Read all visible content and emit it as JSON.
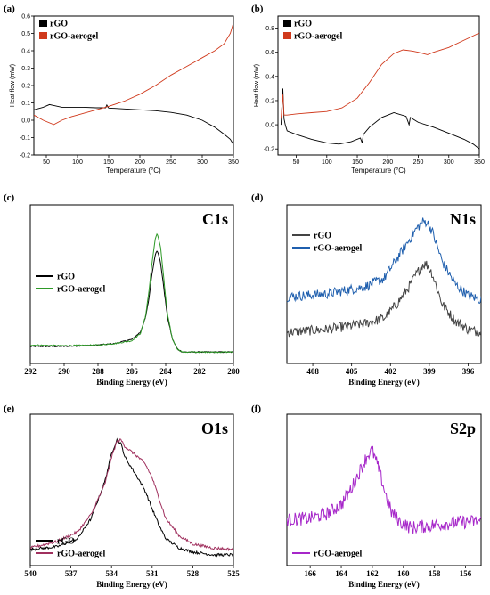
{
  "panels": [
    {
      "id": "a",
      "panel_label": "(a)",
      "style": "dsc",
      "chart_data": {
        "type": "line",
        "title": "",
        "xlabel": "Temperature (°C)",
        "ylabel": "Heat flow (mW)",
        "xlim": [
          30,
          350
        ],
        "ylim": [
          -0.2,
          0.6
        ],
        "xticks": [
          50,
          100,
          150,
          200,
          250,
          300,
          350
        ],
        "yticks": [
          -0.2,
          -0.1,
          0.0,
          0.1,
          0.2,
          0.3,
          0.4,
          0.5,
          0.6
        ],
        "ytick_labels": [
          "-0.2",
          "-0.1",
          "0.0",
          "0.1",
          "0.2",
          "0.3",
          "0.4",
          "0.5",
          "0.6"
        ],
        "legend": {
          "position": "top-left",
          "marker": "box",
          "entries": [
            "rGO",
            "rGO-aerogel"
          ]
        },
        "series": [
          {
            "name": "rGO",
            "color": "#000000",
            "x": [
              30,
              45,
              55,
              62,
              75,
              90,
              110,
              130,
              145,
              147,
              150,
              175,
              200,
              225,
              250,
              275,
              300,
              320,
              335,
              345,
              350
            ],
            "y": [
              0.06,
              0.075,
              0.09,
              0.085,
              0.075,
              0.075,
              0.075,
              0.072,
              0.072,
              0.088,
              0.07,
              0.065,
              0.06,
              0.055,
              0.045,
              0.03,
              0.0,
              -0.04,
              -0.08,
              -0.11,
              -0.14
            ]
          },
          {
            "name": "rGO-aerogel",
            "color": "#d0391c",
            "x": [
              30,
              45,
              62,
              75,
              90,
              110,
              130,
              150,
              175,
              200,
              225,
              250,
              275,
              300,
              320,
              335,
              345,
              350
            ],
            "y": [
              0.03,
              0.0,
              -0.025,
              0.0,
              0.02,
              0.04,
              0.06,
              0.08,
              0.11,
              0.15,
              0.2,
              0.26,
              0.31,
              0.36,
              0.4,
              0.44,
              0.5,
              0.56
            ]
          }
        ]
      }
    },
    {
      "id": "b",
      "panel_label": "(b)",
      "style": "dsc",
      "chart_data": {
        "type": "line",
        "title": "",
        "xlabel": "Temperature (°C)",
        "ylabel": "Heat flow (mW)",
        "xlim": [
          20,
          350
        ],
        "ylim": [
          -0.25,
          0.9
        ],
        "xticks": [
          50,
          100,
          150,
          200,
          250,
          300,
          350
        ],
        "yticks": [
          -0.2,
          0.0,
          0.2,
          0.4,
          0.6,
          0.8
        ],
        "ytick_labels": [
          "-0.2",
          "0.0",
          "0.2",
          "0.4",
          "0.6",
          "0.8"
        ],
        "legend": {
          "position": "top-left",
          "marker": "box",
          "entries": [
            "rGO",
            "rGO-aerogel"
          ]
        },
        "series": [
          {
            "name": "rGO",
            "color": "#000000",
            "x": [
              25,
              28,
              30,
              32,
              35,
              50,
              75,
              100,
              120,
              140,
              155,
              158,
              160,
              170,
              190,
              210,
              230,
              235,
              237,
              250,
              275,
              300,
              325,
              340,
              350
            ],
            "y": [
              0.0,
              0.3,
              0.05,
              0.0,
              -0.05,
              -0.08,
              -0.12,
              -0.15,
              -0.16,
              -0.14,
              -0.11,
              -0.15,
              -0.08,
              -0.02,
              0.06,
              0.1,
              0.07,
              0.0,
              0.06,
              0.02,
              -0.02,
              -0.07,
              -0.12,
              -0.16,
              -0.2
            ]
          },
          {
            "name": "rGO-aerogel",
            "color": "#d0391c",
            "x": [
              25,
              28,
              30,
              35,
              50,
              75,
              100,
              125,
              150,
              170,
              190,
              210,
              225,
              240,
              250,
              265,
              275,
              300,
              325,
              350
            ],
            "y": [
              0.05,
              0.25,
              0.08,
              0.08,
              0.09,
              0.1,
              0.11,
              0.14,
              0.22,
              0.35,
              0.5,
              0.59,
              0.62,
              0.61,
              0.6,
              0.58,
              0.6,
              0.64,
              0.7,
              0.76
            ]
          }
        ]
      }
    },
    {
      "id": "c",
      "panel_label": "(c)",
      "style": "xps",
      "core_label": "C1s",
      "chart_data": {
        "type": "line",
        "title": "",
        "xlabel": "Binding Energy (eV)",
        "ylabel": "",
        "xlim": [
          292,
          280
        ],
        "ylim": [
          0,
          1.12
        ],
        "xticks": [
          292,
          290,
          288,
          286,
          284,
          282,
          280
        ],
        "yticks": [],
        "legend": {
          "position": "center-left",
          "marker": "line",
          "entries": [
            "rGO",
            "rGO-aerogel"
          ]
        },
        "series": [
          {
            "name": "rGO",
            "color": "#000000",
            "x": [
              292,
              290,
              288,
              287,
              286,
              285.5,
              285.2,
              285,
              284.8,
              284.6,
              284.5,
              284.3,
              284.1,
              283.9,
              283.6,
              283.3,
              283,
              282,
              281,
              280
            ],
            "y": [
              0.12,
              0.12,
              0.13,
              0.14,
              0.17,
              0.22,
              0.32,
              0.45,
              0.64,
              0.78,
              0.8,
              0.71,
              0.52,
              0.33,
              0.17,
              0.1,
              0.08,
              0.08,
              0.08,
              0.08
            ]
          },
          {
            "name": "rGO-aerogel",
            "color": "#2e9a28",
            "x": [
              292,
              290,
              288,
              287,
              286,
              285.5,
              285.2,
              285,
              284.8,
              284.6,
              284.5,
              284.3,
              284.1,
              283.9,
              283.6,
              283.3,
              283,
              282,
              281,
              280
            ],
            "y": [
              0.13,
              0.125,
              0.13,
              0.14,
              0.16,
              0.21,
              0.33,
              0.5,
              0.72,
              0.89,
              0.92,
              0.82,
              0.58,
              0.35,
              0.17,
              0.1,
              0.08,
              0.08,
              0.08,
              0.08
            ]
          }
        ]
      }
    },
    {
      "id": "d",
      "panel_label": "(d)",
      "style": "xps",
      "core_label": "N1s",
      "chart_data": {
        "type": "line",
        "title": "",
        "xlabel": "Binding Energy (eV)",
        "ylabel": "",
        "xlim": [
          410,
          395
        ],
        "ylim": [
          0,
          1.12
        ],
        "xticks": [
          408,
          405,
          402,
          399,
          396
        ],
        "yticks": [],
        "legend": {
          "position": "top-left",
          "marker": "line",
          "entries": [
            "rGO",
            "rGO-aerogel"
          ]
        },
        "series": [
          {
            "name": "rGO",
            "color": "#444444",
            "x": [
              410,
              407,
              404,
              402.5,
              401.5,
              400.5,
              400,
              399.5,
              399.2,
              398.8,
              398,
              397,
              396,
              395
            ],
            "y": [
              0.22,
              0.24,
              0.28,
              0.32,
              0.42,
              0.55,
              0.63,
              0.7,
              0.7,
              0.64,
              0.42,
              0.3,
              0.24,
              0.22
            ]
          },
          {
            "name": "rGO-aerogel",
            "color": "#1f5fae",
            "x": [
              410,
              407,
              404,
              402.5,
              401.5,
              400.5,
              400,
              399.5,
              399.2,
              398.8,
              398,
              397,
              396,
              395
            ],
            "y": [
              0.47,
              0.49,
              0.54,
              0.6,
              0.74,
              0.88,
              0.95,
              1.0,
              1.0,
              0.94,
              0.72,
              0.56,
              0.48,
              0.45
            ]
          }
        ]
      }
    },
    {
      "id": "e",
      "panel_label": "(e)",
      "style": "xps",
      "core_label": "O1s",
      "chart_data": {
        "type": "line",
        "title": "",
        "xlabel": "Binding Energy (eV)",
        "ylabel": "",
        "xlim": [
          540,
          525
        ],
        "ylim": [
          0,
          1.12
        ],
        "xticks": [
          540,
          537,
          534,
          531,
          528,
          525
        ],
        "yticks": [],
        "legend": {
          "position": "bottom-left",
          "marker": "line",
          "entries": [
            "rGO",
            "rGO-aerogel"
          ]
        },
        "series": [
          {
            "name": "rGO",
            "color": "#000000",
            "x": [
              540,
              538,
              536.5,
              535.5,
              534.5,
              534,
              533.6,
              533.3,
              533,
              532.5,
              532,
              531.5,
              531,
              530.5,
              530,
              529,
              528,
              526.5,
              525
            ],
            "y": [
              0.12,
              0.14,
              0.2,
              0.35,
              0.62,
              0.83,
              0.93,
              0.9,
              0.8,
              0.72,
              0.64,
              0.55,
              0.42,
              0.3,
              0.2,
              0.13,
              0.1,
              0.08,
              0.08
            ]
          },
          {
            "name": "rGO-aerogel",
            "color": "#a0305e",
            "x": [
              540,
              538,
              536.5,
              535.5,
              534.5,
              534,
              533.6,
              533.3,
              533,
              532.5,
              532,
              531.5,
              531,
              530.5,
              530,
              529,
              528,
              526.5,
              525
            ],
            "y": [
              0.13,
              0.18,
              0.25,
              0.38,
              0.6,
              0.8,
              0.92,
              0.93,
              0.88,
              0.84,
              0.8,
              0.75,
              0.65,
              0.5,
              0.35,
              0.22,
              0.16,
              0.13,
              0.12
            ]
          }
        ]
      }
    },
    {
      "id": "f",
      "panel_label": "(f)",
      "style": "xps",
      "core_label": "S2p",
      "chart_data": {
        "type": "line",
        "title": "",
        "xlabel": "Binding Energy (eV)",
        "ylabel": "",
        "xlim": [
          167.5,
          155
        ],
        "ylim": [
          0,
          1.12
        ],
        "xticks": [
          166,
          164,
          162,
          160,
          158,
          156
        ],
        "yticks": [],
        "legend": {
          "position": "bottom-left",
          "marker": "line",
          "entries": [
            "rGO-aerogel"
          ]
        },
        "series": [
          {
            "name": "rGO-aerogel",
            "color": "#a626c9",
            "x": [
              167.5,
              166,
              165,
              164,
              163.3,
              162.8,
              162.3,
              162,
              161.6,
              161.2,
              160.8,
              160.2,
              159.5,
              158,
              156.5,
              155
            ],
            "y": [
              0.34,
              0.35,
              0.38,
              0.45,
              0.58,
              0.7,
              0.82,
              0.85,
              0.72,
              0.55,
              0.4,
              0.32,
              0.28,
              0.3,
              0.32,
              0.33
            ]
          }
        ]
      }
    }
  ]
}
